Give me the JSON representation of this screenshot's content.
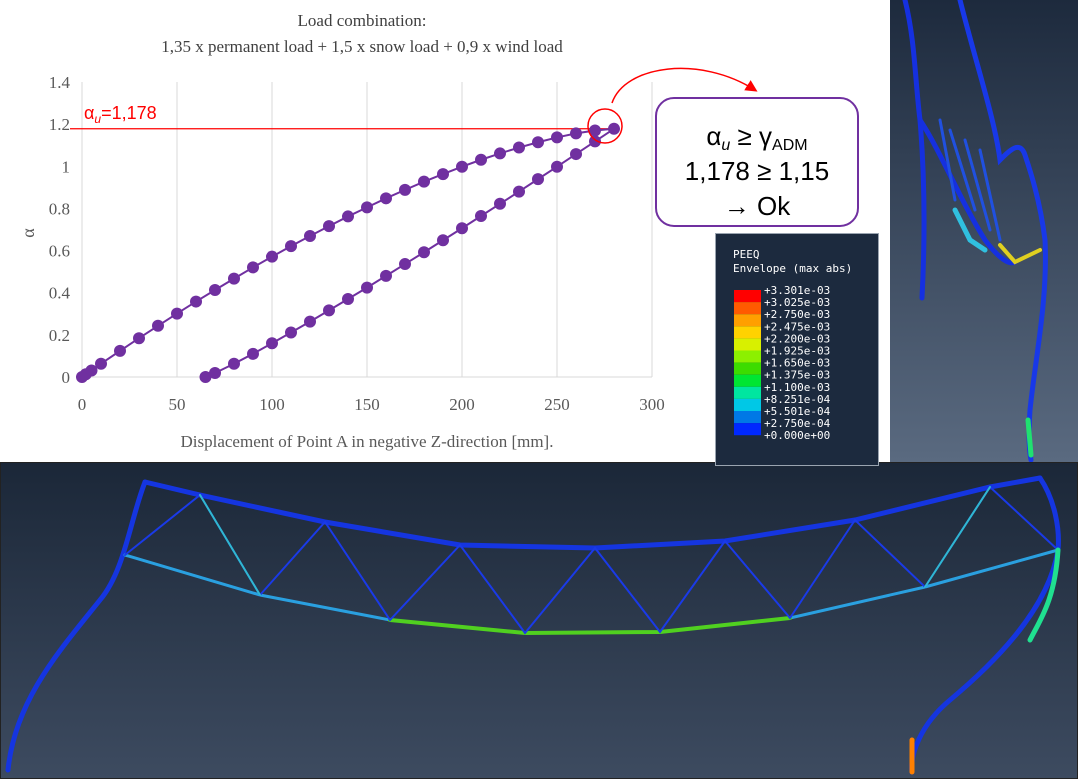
{
  "chart_data": {
    "type": "scatter",
    "title": "Load combination:",
    "subtitle": "1,35 x permanent load + 1,5 x snow load + 0,9 x wind load",
    "x_label": "Displacement of Point A in negative Z-direction [mm].",
    "y_label": "α",
    "xlim": [
      0,
      300
    ],
    "xticks": [
      0,
      50,
      100,
      150,
      200,
      250,
      300
    ],
    "ylim": [
      0,
      1.4
    ],
    "yticks": [
      0,
      0.2,
      0.4,
      0.6,
      0.8,
      1,
      1.2,
      1.4
    ],
    "grid": "x",
    "series": [
      {
        "color": "#7030a0",
        "x": [
          0,
          2,
          5,
          10,
          20,
          30,
          40,
          50,
          60,
          70,
          80,
          90,
          100,
          110,
          120,
          130,
          140,
          150,
          160,
          170,
          180,
          190,
          200,
          210,
          220,
          230,
          240,
          250,
          260,
          270,
          280,
          270,
          260,
          250,
          240,
          230,
          220,
          210,
          200,
          190,
          180,
          170,
          160,
          150,
          140,
          130,
          120,
          110,
          100,
          90,
          80,
          70,
          65
        ],
        "values": [
          0,
          0.013,
          0.031,
          0.063,
          0.124,
          0.184,
          0.243,
          0.301,
          0.358,
          0.413,
          0.467,
          0.52,
          0.571,
          0.621,
          0.669,
          0.716,
          0.762,
          0.805,
          0.848,
          0.888,
          0.927,
          0.963,
          0.998,
          1.031,
          1.061,
          1.089,
          1.114,
          1.137,
          1.156,
          1.17,
          1.178,
          1.118,
          1.058,
          0.998,
          0.939,
          0.88,
          0.822,
          0.764,
          0.706,
          0.649,
          0.592,
          0.536,
          0.48,
          0.424,
          0.37,
          0.316,
          0.263,
          0.211,
          0.16,
          0.11,
          0.063,
          0.019,
          0
        ]
      }
    ],
    "reference_line": {
      "y": 1.178,
      "color": "#ff0000",
      "symbol": "α",
      "subscript": "u",
      "text": "=1,178"
    },
    "check_box": {
      "symbol": "α",
      "subscript": "u",
      "relation": " ≥ ",
      "gamma": "γ",
      "gamma_subscript": "ADM",
      "line2": "1,178 ≥ 1,15",
      "line3": "→ Ok"
    }
  },
  "contour_legend": {
    "title": "PEEQ",
    "subtitle": "Envelope (max abs)",
    "labels": [
      "+3.301e-03",
      "+3.025e-03",
      "+2.750e-03",
      "+2.475e-03",
      "+2.200e-03",
      "+1.925e-03",
      "+1.650e-03",
      "+1.375e-03",
      "+1.100e-03",
      "+8.251e-04",
      "+5.501e-04",
      "+2.750e-04",
      "+0.000e+00"
    ],
    "colors": [
      "#ff0000",
      "#ff5a00",
      "#ff9f00",
      "#ffd200",
      "#d8f000",
      "#8cf000",
      "#3cdc00",
      "#00e632",
      "#00e6a0",
      "#00c8e6",
      "#0078e6",
      "#0028ff"
    ]
  }
}
